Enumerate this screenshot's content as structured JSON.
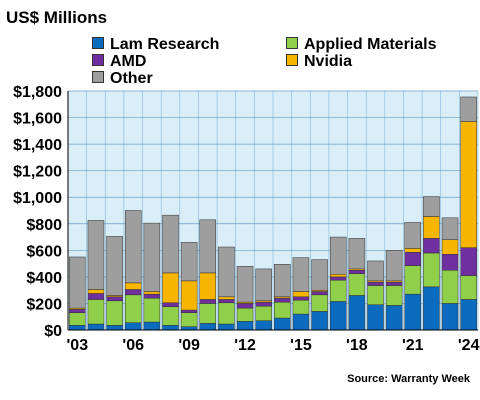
{
  "unit_title": "US$ Millions",
  "source": "Source: Warranty Week",
  "legend": [
    {
      "label": "Lam Research",
      "color": "#0b6bbf"
    },
    {
      "label": "Applied Materials",
      "color": "#8fcf4a"
    },
    {
      "label": "AMD",
      "color": "#6f2f9f"
    },
    {
      "label": "Nvidia",
      "color": "#f7b500"
    },
    {
      "label": "Other",
      "color": "#9e9e9e"
    }
  ],
  "chart_data": {
    "type": "bar",
    "stacked": true,
    "title": "",
    "xlabel": "",
    "ylabel": "US$ Millions",
    "ylim": [
      0,
      1800
    ],
    "yticks": [
      "$0",
      "$200",
      "$400",
      "$600",
      "$800",
      "$1,000",
      "$1,200",
      "$1,400",
      "$1,600",
      "$1,800"
    ],
    "xtick_labels": [
      "'03",
      "'06",
      "'09",
      "'12",
      "'15",
      "'18",
      "'21",
      "'24"
    ],
    "grid": true,
    "categories": [
      "2003",
      "2004",
      "2005",
      "2006",
      "2007",
      "2008",
      "2009",
      "2010",
      "2011",
      "2012",
      "2013",
      "2014",
      "2015",
      "2016",
      "2017",
      "2018",
      "2019",
      "2020",
      "2021",
      "2022",
      "2023",
      "2024"
    ],
    "series": [
      {
        "name": "Lam Research",
        "values": [
          35,
          45,
          35,
          55,
          60,
          35,
          25,
          50,
          45,
          65,
          70,
          90,
          120,
          140,
          215,
          260,
          190,
          185,
          270,
          325,
          200,
          230
        ]
      },
      {
        "name": "Applied Materials",
        "values": [
          95,
          185,
          185,
          210,
          180,
          140,
          105,
          150,
          160,
          100,
          110,
          120,
          105,
          125,
          160,
          165,
          145,
          150,
          215,
          255,
          250,
          180
        ]
      },
      {
        "name": "AMD",
        "values": [
          25,
          45,
          30,
          40,
          30,
          30,
          20,
          30,
          25,
          35,
          30,
          30,
          25,
          25,
          25,
          25,
          25,
          25,
          100,
          110,
          120,
          210
        ]
      },
      {
        "name": "Nvidia",
        "values": [
          10,
          30,
          10,
          50,
          20,
          225,
          220,
          200,
          20,
          10,
          10,
          10,
          40,
          10,
          20,
          10,
          10,
          10,
          30,
          165,
          110,
          950
        ]
      },
      {
        "name": "Other",
        "values": [
          385,
          520,
          445,
          545,
          515,
          435,
          290,
          400,
          375,
          270,
          240,
          245,
          255,
          230,
          280,
          230,
          150,
          230,
          195,
          150,
          165,
          185
        ]
      }
    ]
  }
}
